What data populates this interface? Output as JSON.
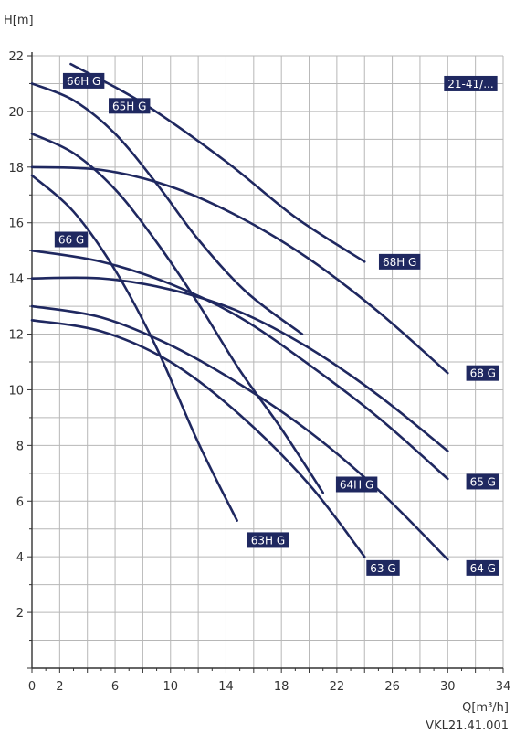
{
  "chart_data": {
    "type": "line",
    "title": "",
    "ylabel": "H[m]",
    "xlabel": "Q[m³/h]",
    "badge": "21-41/...",
    "footnote": "VKL21.41.001",
    "xlim": [
      0,
      34
    ],
    "ylim": [
      0,
      22
    ],
    "x_ticks": [
      0,
      2,
      6,
      10,
      14,
      18,
      22,
      26,
      30,
      34
    ],
    "y_ticks": [
      2,
      4,
      6,
      8,
      10,
      12,
      14,
      16,
      18,
      20,
      22
    ],
    "grid": true,
    "line_color": "#1f2860",
    "series": [
      {
        "name": "68H G",
        "x": [
          2.8,
          8,
          14,
          19,
          24
        ],
        "y": [
          21.7,
          20.3,
          18.2,
          16.2,
          14.6
        ]
      },
      {
        "name": "66H G",
        "x": [
          0,
          3,
          6,
          9,
          12,
          15.5,
          19.5
        ],
        "y": [
          21.0,
          20.4,
          19.2,
          17.4,
          15.4,
          13.5,
          12.0
        ]
      },
      {
        "name": "65H G",
        "x": [
          0,
          3,
          6,
          9,
          12,
          15,
          18,
          21
        ],
        "y": [
          19.2,
          18.5,
          17.2,
          15.3,
          13.1,
          10.7,
          8.6,
          6.3
        ]
      },
      {
        "name": "63H G",
        "x": [
          0,
          3,
          6,
          9,
          12,
          14.8
        ],
        "y": [
          17.7,
          16.4,
          14.3,
          11.5,
          8.1,
          5.3
        ]
      },
      {
        "name": "68 G",
        "x": [
          0,
          5,
          10,
          15,
          20,
          25,
          30
        ],
        "y": [
          18.0,
          17.9,
          17.3,
          16.2,
          14.7,
          12.8,
          10.6
        ]
      },
      {
        "name": "66 G",
        "x": [
          0,
          5,
          10,
          15,
          20,
          25,
          30
        ],
        "y": [
          15.0,
          14.6,
          13.8,
          12.6,
          10.9,
          9.0,
          6.8
        ]
      },
      {
        "name": "65 G",
        "x": [
          0,
          5,
          10,
          15,
          20,
          25,
          30
        ],
        "y": [
          14.0,
          14.0,
          13.6,
          12.8,
          11.5,
          9.8,
          7.8
        ]
      },
      {
        "name": "64H G",
        "x": [
          0,
          5,
          10,
          15,
          20,
          25,
          30
        ],
        "y": [
          13.0,
          12.6,
          11.6,
          10.2,
          8.5,
          6.4,
          3.9
        ]
      },
      {
        "name": "63 G",
        "x": [
          0,
          5,
          10,
          15,
          20,
          24
        ],
        "y": [
          12.5,
          12.1,
          11.0,
          9.1,
          6.6,
          4.0
        ]
      }
    ],
    "curve_labels": [
      {
        "text": "66H G",
        "x": 2.5,
        "y": 21.1
      },
      {
        "text": "65H G",
        "x": 5.8,
        "y": 20.2
      },
      {
        "text": "68H G",
        "x": 25.3,
        "y": 14.6
      },
      {
        "text": "21-41/...",
        "x": 30.0,
        "y": 21.0
      },
      {
        "text": "66 G",
        "x": 1.9,
        "y": 15.4
      },
      {
        "text": "68 G",
        "x": 31.6,
        "y": 10.6
      },
      {
        "text": "64H G",
        "x": 22.2,
        "y": 6.6
      },
      {
        "text": "65 G",
        "x": 31.6,
        "y": 6.7
      },
      {
        "text": "63H G",
        "x": 15.8,
        "y": 4.6
      },
      {
        "text": "63 G",
        "x": 24.4,
        "y": 3.6
      },
      {
        "text": "64 G",
        "x": 31.6,
        "y": 3.6
      }
    ]
  }
}
